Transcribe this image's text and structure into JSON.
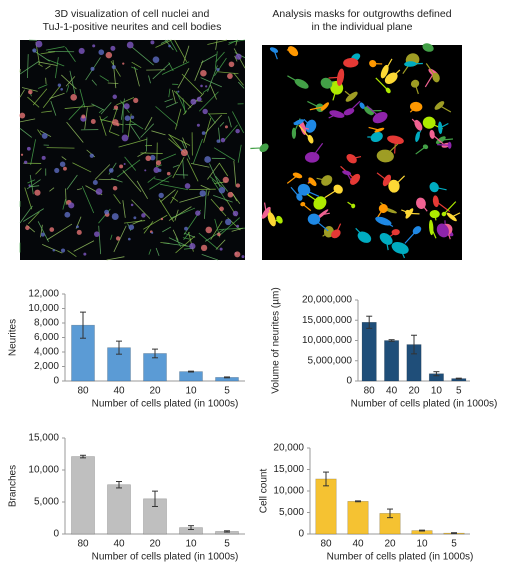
{
  "images": [
    {
      "caption": "3D visualization of cell nuclei and TuJ-1-positive neurites and cell bodies"
    },
    {
      "caption": "Analysis masks for outgrowths defined in the individual plane"
    }
  ],
  "chart_data": [
    {
      "type": "bar",
      "y_label": "Neurites",
      "x_label": "Number of cells plated (in 1000s)",
      "categories": [
        "80",
        "40",
        "20",
        "10",
        "5"
      ],
      "values": [
        7700,
        4600,
        3800,
        1300,
        500
      ],
      "errors": [
        1800,
        900,
        600,
        60,
        60
      ],
      "color": "#5b9bd5",
      "ylim": [
        0,
        12000
      ],
      "yticks": [
        0,
        {
          "value": 2000,
          "label": "2,000"
        },
        {
          "value": 4000,
          "label": "4,000"
        },
        {
          "value": 6000,
          "label": "6,000"
        },
        {
          "value": 8000,
          "label": "8,000"
        },
        {
          "value": 10000,
          "label": "10,000"
        },
        {
          "value": 12000,
          "label": "12,000"
        }
      ]
    },
    {
      "type": "bar",
      "y_label": "Volume of neurites (µm)",
      "x_label": "Number of cells plated (in 1000s)",
      "categories": [
        "80",
        "40",
        "20",
        "10",
        "5"
      ],
      "values": [
        14500000,
        10000000,
        9000000,
        1800000,
        600000
      ],
      "errors": [
        1500000,
        200000,
        2300000,
        500000,
        100000
      ],
      "color": "#1f4e79",
      "ylim": [
        0,
        20000000
      ],
      "yticks": [
        0,
        {
          "value": 5000000,
          "label": "5,000,000"
        },
        {
          "value": 10000000,
          "label": "10,000,000"
        },
        {
          "value": 15000000,
          "label": "15,000,000"
        },
        {
          "value": 20000000,
          "label": "20,000,000"
        }
      ]
    },
    {
      "type": "bar",
      "y_label": "Branches",
      "x_label": "Number of cells plated (in 1000s)",
      "categories": [
        "80",
        "40",
        "20",
        "10",
        "5"
      ],
      "values": [
        12100,
        7700,
        5500,
        1000,
        400
      ],
      "errors": [
        200,
        500,
        1200,
        300,
        100
      ],
      "color": "#bfbfbf",
      "ylim": [
        0,
        15000
      ],
      "yticks": [
        0,
        {
          "value": 5000,
          "label": "5,000"
        },
        {
          "value": 10000,
          "label": "10,000"
        },
        {
          "value": 15000,
          "label": "15,000"
        }
      ]
    },
    {
      "type": "bar",
      "y_label": "Cell count",
      "x_label": "Number of cells plated (in 1000s)",
      "categories": [
        "80",
        "40",
        "20",
        "10",
        "5"
      ],
      "values": [
        12800,
        7600,
        4800,
        800,
        200
      ],
      "errors": [
        1600,
        100,
        1000,
        100,
        100
      ],
      "color": "#f5c232",
      "ylim": [
        0,
        20000
      ],
      "yticks": [
        0,
        {
          "value": 5000,
          "label": "5,000"
        },
        {
          "value": 10000,
          "label": "10,000"
        },
        {
          "value": 15000,
          "label": "15,000"
        },
        {
          "value": 20000,
          "label": "20,000"
        }
      ]
    }
  ]
}
